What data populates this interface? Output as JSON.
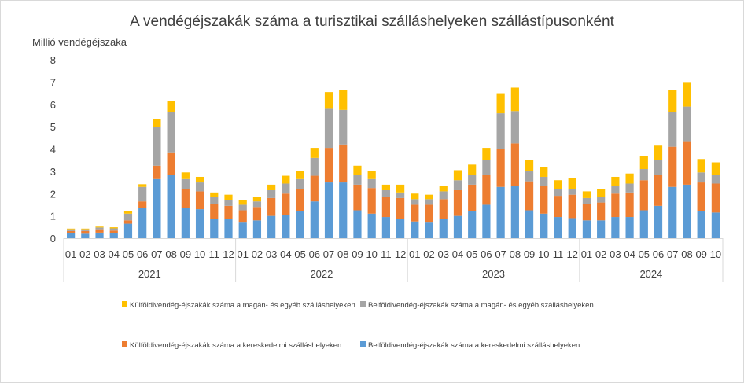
{
  "chart_data": {
    "type": "bar",
    "stacked": true,
    "title": "A vendégéjszakák száma a turisztikai szálláshelyeken szállástípusonként",
    "ylabel": "Millió vendégéjszaka",
    "xlabel": "",
    "ylim": [
      0,
      8
    ],
    "yticks": [
      0,
      1,
      2,
      3,
      4,
      5,
      6,
      7,
      8
    ],
    "grid": false,
    "legend_position": "bottom",
    "years": [
      {
        "label": "2021",
        "months": [
          "01",
          "02",
          "03",
          "04",
          "05",
          "06",
          "07",
          "08",
          "09",
          "10",
          "11",
          "12"
        ]
      },
      {
        "label": "2022",
        "months": [
          "01",
          "02",
          "03",
          "04",
          "05",
          "06",
          "07",
          "08",
          "09",
          "10",
          "11",
          "12"
        ]
      },
      {
        "label": "2023",
        "months": [
          "01",
          "02",
          "03",
          "04",
          "05",
          "06",
          "07",
          "08",
          "09",
          "10",
          "11",
          "12"
        ]
      },
      {
        "label": "2024",
        "months": [
          "01",
          "02",
          "03",
          "04",
          "05",
          "06",
          "07",
          "08",
          "09",
          "10"
        ]
      }
    ],
    "series": [
      {
        "name": "Belföldivendég-éjszakák száma a kereskedelmi szálláshelyeken",
        "color": "#5b9bd5",
        "values": [
          0.22,
          0.2,
          0.25,
          0.22,
          0.65,
          1.35,
          2.65,
          2.85,
          1.35,
          1.3,
          0.85,
          0.85,
          0.7,
          0.8,
          1.0,
          1.05,
          1.2,
          1.65,
          2.5,
          2.5,
          1.25,
          1.1,
          0.95,
          0.85,
          0.75,
          0.7,
          0.85,
          1.0,
          1.2,
          1.5,
          2.3,
          2.35,
          1.25,
          1.1,
          0.95,
          0.9,
          0.8,
          0.8,
          0.95,
          0.95,
          1.25,
          1.45,
          2.3,
          2.4,
          1.2,
          1.15
        ]
      },
      {
        "name": "Külföldivendég-éjszakák száma a kereskedelmi szálláshelyeken",
        "color": "#ed7d31",
        "values": [
          0.1,
          0.12,
          0.15,
          0.12,
          0.15,
          0.3,
          0.6,
          1.0,
          0.85,
          0.8,
          0.7,
          0.6,
          0.55,
          0.6,
          0.8,
          0.95,
          1.0,
          1.15,
          1.55,
          1.7,
          1.15,
          1.15,
          0.9,
          0.95,
          0.75,
          0.8,
          0.9,
          1.15,
          1.2,
          1.35,
          1.7,
          1.9,
          1.3,
          1.25,
          0.95,
          1.05,
          0.75,
          0.8,
          1.05,
          1.1,
          1.35,
          1.4,
          1.8,
          1.95,
          1.3,
          1.3
        ]
      },
      {
        "name": "Belföldivendég-éjszakák száma a magán- és egyéb szálláshelyeken",
        "color": "#a5a5a5",
        "values": [
          0.08,
          0.08,
          0.08,
          0.1,
          0.3,
          0.65,
          1.75,
          1.8,
          0.45,
          0.4,
          0.3,
          0.25,
          0.25,
          0.25,
          0.35,
          0.45,
          0.45,
          0.8,
          1.75,
          1.55,
          0.45,
          0.4,
          0.3,
          0.25,
          0.25,
          0.25,
          0.35,
          0.45,
          0.45,
          0.65,
          1.6,
          1.45,
          0.45,
          0.4,
          0.3,
          0.25,
          0.25,
          0.25,
          0.35,
          0.4,
          0.5,
          0.65,
          1.55,
          1.55,
          0.45,
          0.4
        ]
      },
      {
        "name": "Külföldivendég-éjszakák száma a magán- és egyéb szálláshelyeken",
        "color": "#ffc000",
        "values": [
          0.03,
          0.03,
          0.04,
          0.05,
          0.1,
          0.12,
          0.35,
          0.5,
          0.3,
          0.25,
          0.2,
          0.25,
          0.2,
          0.2,
          0.25,
          0.35,
          0.35,
          0.45,
          0.75,
          0.9,
          0.4,
          0.35,
          0.25,
          0.35,
          0.25,
          0.2,
          0.25,
          0.45,
          0.45,
          0.55,
          0.9,
          1.05,
          0.5,
          0.45,
          0.4,
          0.5,
          0.3,
          0.35,
          0.4,
          0.45,
          0.6,
          0.65,
          1.0,
          1.1,
          0.6,
          0.55
        ]
      }
    ],
    "legend_order": [
      3,
      2,
      1,
      0
    ]
  }
}
